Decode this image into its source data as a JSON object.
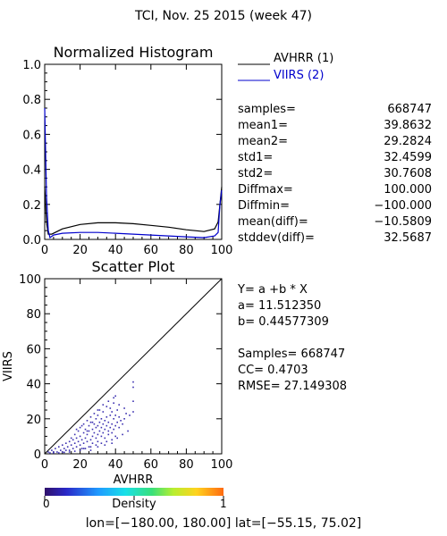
{
  "page_title": "TCI,  Nov. 25 2015 (week 47)",
  "footer": {
    "lon_label": "lon=",
    "lon_range": "[−180.00, 180.00]",
    "lat_label": "lat=",
    "lat_range": "[−55.15, 75.02]"
  },
  "histogram": {
    "title": "Normalized Histogram",
    "legend": [
      {
        "label": "AVHRR (1)",
        "color": "#000000"
      },
      {
        "label": "VIIRS (2)",
        "color": "#0000cc"
      }
    ],
    "stats": [
      {
        "label": "samples=",
        "value": "668747"
      },
      {
        "label": "mean1=",
        "value": "39.8632"
      },
      {
        "label": "mean2=",
        "value": "29.2824"
      },
      {
        "label": "std1=",
        "value": "32.4599"
      },
      {
        "label": "std2=",
        "value": "30.7608"
      },
      {
        "label": "Diffmax=",
        "value": "100.000"
      },
      {
        "label": "Diffmin=",
        "value": "−100.000"
      },
      {
        "label": "mean(diff)=",
        "value": "−10.5809"
      },
      {
        "label": "stddev(diff)=",
        "value": "32.5687"
      }
    ]
  },
  "scatter": {
    "title": "Scatter Plot",
    "regression": {
      "eq": "Y= a +b * X",
      "a": "a= 11.512350",
      "b": "b= 0.44577309"
    },
    "metrics": {
      "samples": "Samples= 668747",
      "cc": "CC=  0.4703",
      "rmse": "RMSE= 27.149308"
    }
  },
  "colorbar": {
    "title": "Density",
    "min_label": "0",
    "max_label": "1"
  },
  "chart_data": [
    {
      "type": "line",
      "title": "Normalized Histogram",
      "xlim": [
        0,
        100
      ],
      "ylim": [
        0,
        1.0
      ],
      "x_ticks": [
        "0",
        "20",
        "40",
        "60",
        "80",
        "100"
      ],
      "y_ticks": [
        "0.0",
        "0.2",
        "0.4",
        "0.6",
        "0.8",
        "1.0"
      ],
      "legend_position": "top-right",
      "series": [
        {
          "name": "AVHRR (1)",
          "color": "#000000",
          "x": [
            0,
            1,
            2,
            4,
            10,
            20,
            30,
            40,
            50,
            60,
            70,
            80,
            90,
            96,
            98,
            99,
            100
          ],
          "y": [
            0.3,
            0.1,
            0.03,
            0.03,
            0.06,
            0.085,
            0.095,
            0.095,
            0.09,
            0.08,
            0.07,
            0.055,
            0.045,
            0.06,
            0.1,
            0.2,
            0.3
          ]
        },
        {
          "name": "VIIRS (2)",
          "color": "#0000cc",
          "x": [
            0,
            1,
            2,
            3,
            5,
            10,
            20,
            30,
            40,
            50,
            60,
            70,
            80,
            90,
            96,
            98,
            99,
            100
          ],
          "y": [
            0.75,
            0.25,
            0.05,
            0.01,
            0.025,
            0.035,
            0.04,
            0.04,
            0.035,
            0.03,
            0.025,
            0.02,
            0.015,
            0.01,
            0.02,
            0.04,
            0.2,
            0.28
          ]
        }
      ]
    },
    {
      "type": "scatter",
      "title": "Scatter Plot",
      "xlabel": "AVHRR",
      "ylabel": "VIIRS",
      "xlim": [
        0,
        100
      ],
      "ylim": [
        0,
        100
      ],
      "x_ticks": [
        "0",
        "20",
        "40",
        "60",
        "80",
        "100"
      ],
      "y_ticks": [
        "0",
        "20",
        "40",
        "60",
        "80",
        "100"
      ],
      "reference_line": {
        "x": [
          0,
          100
        ],
        "y": [
          0,
          100
        ]
      },
      "point_color": "#3a2fb0",
      "points": [
        [
          2,
          1
        ],
        [
          3,
          0.5
        ],
        [
          4,
          2
        ],
        [
          5,
          1
        ],
        [
          6,
          3
        ],
        [
          7,
          1
        ],
        [
          8,
          4
        ],
        [
          9,
          2
        ],
        [
          10,
          5
        ],
        [
          10,
          1
        ],
        [
          11,
          3
        ],
        [
          12,
          6
        ],
        [
          12,
          2
        ],
        [
          13,
          4
        ],
        [
          14,
          7
        ],
        [
          14,
          1
        ],
        [
          15,
          5
        ],
        [
          15,
          9
        ],
        [
          16,
          3
        ],
        [
          16,
          8
        ],
        [
          17,
          6
        ],
        [
          17,
          11
        ],
        [
          18,
          4
        ],
        [
          18,
          9
        ],
        [
          19,
          7
        ],
        [
          19,
          13
        ],
        [
          20,
          5
        ],
        [
          20,
          10
        ],
        [
          20,
          15
        ],
        [
          21,
          8
        ],
        [
          21,
          3
        ],
        [
          22,
          12
        ],
        [
          22,
          6
        ],
        [
          22,
          17
        ],
        [
          23,
          9
        ],
        [
          23,
          14
        ],
        [
          24,
          7
        ],
        [
          24,
          11
        ],
        [
          24,
          19
        ],
        [
          25,
          4
        ],
        [
          25,
          13
        ],
        [
          25,
          16
        ],
        [
          26,
          8
        ],
        [
          26,
          18
        ],
        [
          26,
          21
        ],
        [
          27,
          10
        ],
        [
          27,
          14
        ],
        [
          27,
          6
        ],
        [
          28,
          12
        ],
        [
          28,
          17
        ],
        [
          28,
          23
        ],
        [
          29,
          9
        ],
        [
          29,
          15
        ],
        [
          29,
          20
        ],
        [
          30,
          11
        ],
        [
          30,
          16
        ],
        [
          30,
          7
        ],
        [
          30,
          22
        ],
        [
          31,
          13
        ],
        [
          31,
          18
        ],
        [
          31,
          25
        ],
        [
          32,
          10
        ],
        [
          32,
          15
        ],
        [
          32,
          20
        ],
        [
          33,
          12
        ],
        [
          33,
          17
        ],
        [
          33,
          24
        ],
        [
          34,
          14
        ],
        [
          34,
          19
        ],
        [
          34,
          9
        ],
        [
          35,
          16
        ],
        [
          35,
          21
        ],
        [
          35,
          27
        ],
        [
          36,
          13
        ],
        [
          36,
          18
        ],
        [
          36,
          11
        ],
        [
          37,
          15
        ],
        [
          37,
          22
        ],
        [
          37,
          26
        ],
        [
          38,
          17
        ],
        [
          38,
          12
        ],
        [
          38,
          24
        ],
        [
          39,
          14
        ],
        [
          39,
          20
        ],
        [
          39,
          29
        ],
        [
          40,
          16
        ],
        [
          40,
          22
        ],
        [
          40,
          10
        ],
        [
          40,
          33
        ],
        [
          41,
          18
        ],
        [
          41,
          25
        ],
        [
          42,
          15
        ],
        [
          42,
          21
        ],
        [
          43,
          19
        ],
        [
          44,
          17
        ],
        [
          45,
          20
        ],
        [
          46,
          23
        ],
        [
          48,
          22
        ],
        [
          50,
          24
        ],
        [
          50,
          30
        ],
        [
          50,
          38
        ],
        [
          50,
          41
        ],
        [
          5,
          0.5
        ],
        [
          8,
          0.5
        ],
        [
          11,
          0.8
        ],
        [
          14,
          2
        ],
        [
          17,
          1.5
        ],
        [
          20,
          2
        ],
        [
          23,
          3
        ],
        [
          26,
          4
        ],
        [
          29,
          5
        ],
        [
          32,
          6
        ],
        [
          35,
          7
        ],
        [
          38,
          8
        ],
        [
          41,
          9
        ],
        [
          44,
          11
        ],
        [
          47,
          13
        ],
        [
          18,
          14
        ],
        [
          21,
          16
        ],
        [
          24,
          13
        ],
        [
          27,
          18
        ],
        [
          30,
          25
        ],
        [
          33,
          28
        ],
        [
          36,
          30
        ],
        [
          39,
          32
        ],
        [
          42,
          28
        ],
        [
          45,
          26
        ],
        [
          22,
          3
        ],
        [
          26,
          2
        ],
        [
          30,
          4
        ],
        [
          34,
          5
        ],
        [
          38,
          6
        ]
      ]
    }
  ]
}
